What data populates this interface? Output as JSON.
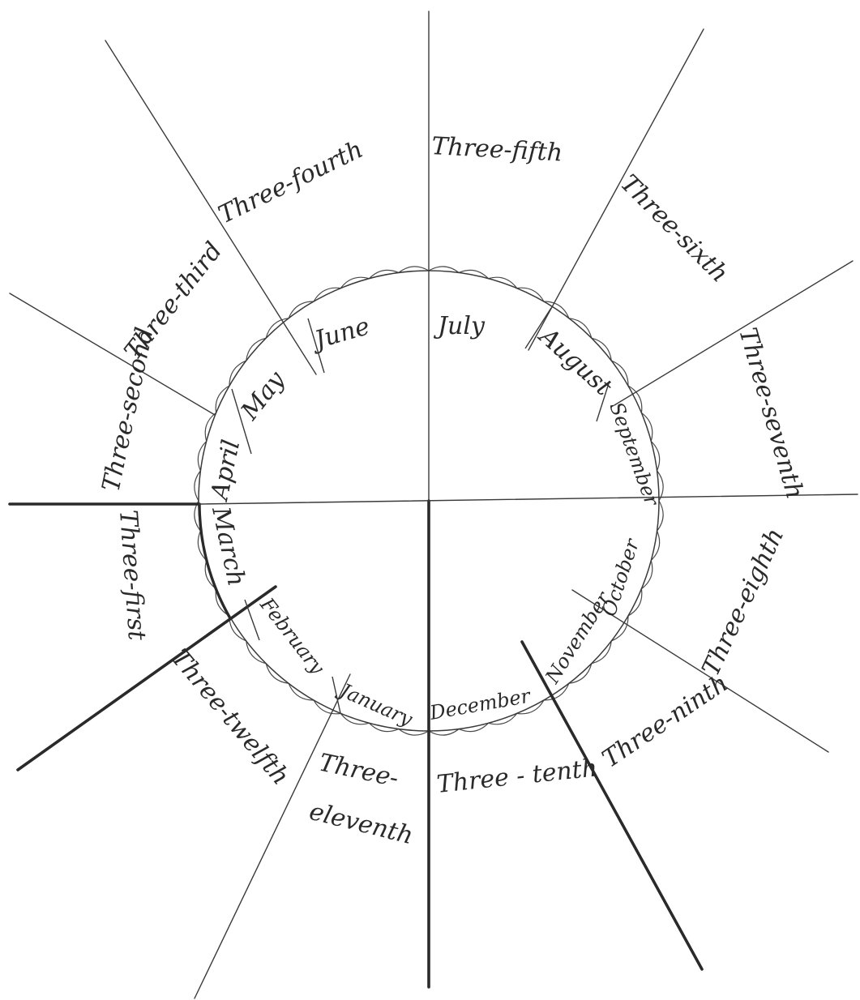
{
  "months": [
    {
      "id": "july",
      "label": "July"
    },
    {
      "id": "august",
      "label": "August"
    },
    {
      "id": "september",
      "label": "September"
    },
    {
      "id": "october",
      "label": "October"
    },
    {
      "id": "november",
      "label": "November"
    },
    {
      "id": "december",
      "label": "December"
    },
    {
      "id": "january",
      "label": "January"
    },
    {
      "id": "february",
      "label": "February"
    },
    {
      "id": "march",
      "label": "March"
    },
    {
      "id": "april",
      "label": "April"
    },
    {
      "id": "may",
      "label": "May"
    },
    {
      "id": "june",
      "label": "June"
    }
  ],
  "outer_labels": [
    {
      "id": "three-fifth",
      "label": "Three-fifth"
    },
    {
      "id": "three-sixth",
      "label": "Three-sixth"
    },
    {
      "id": "three-seventh",
      "label": "Three-seventh"
    },
    {
      "id": "three-eighth",
      "label": "Three-eighth"
    },
    {
      "id": "three-ninth",
      "label": "Three-ninth"
    },
    {
      "id": "three-tenth",
      "label": "Three - tenth"
    },
    {
      "id": "three-eleventh-a",
      "label": "Three-"
    },
    {
      "id": "three-eleventh-b",
      "label": "eleventh"
    },
    {
      "id": "three-twelfth",
      "label": "Three-twelfth"
    },
    {
      "id": "three-first",
      "label": "Three-first"
    },
    {
      "id": "three-second",
      "label": "Three-second"
    },
    {
      "id": "three-third",
      "label": "Three-third"
    },
    {
      "id": "three-fourth",
      "label": "Three-fourth"
    }
  ]
}
